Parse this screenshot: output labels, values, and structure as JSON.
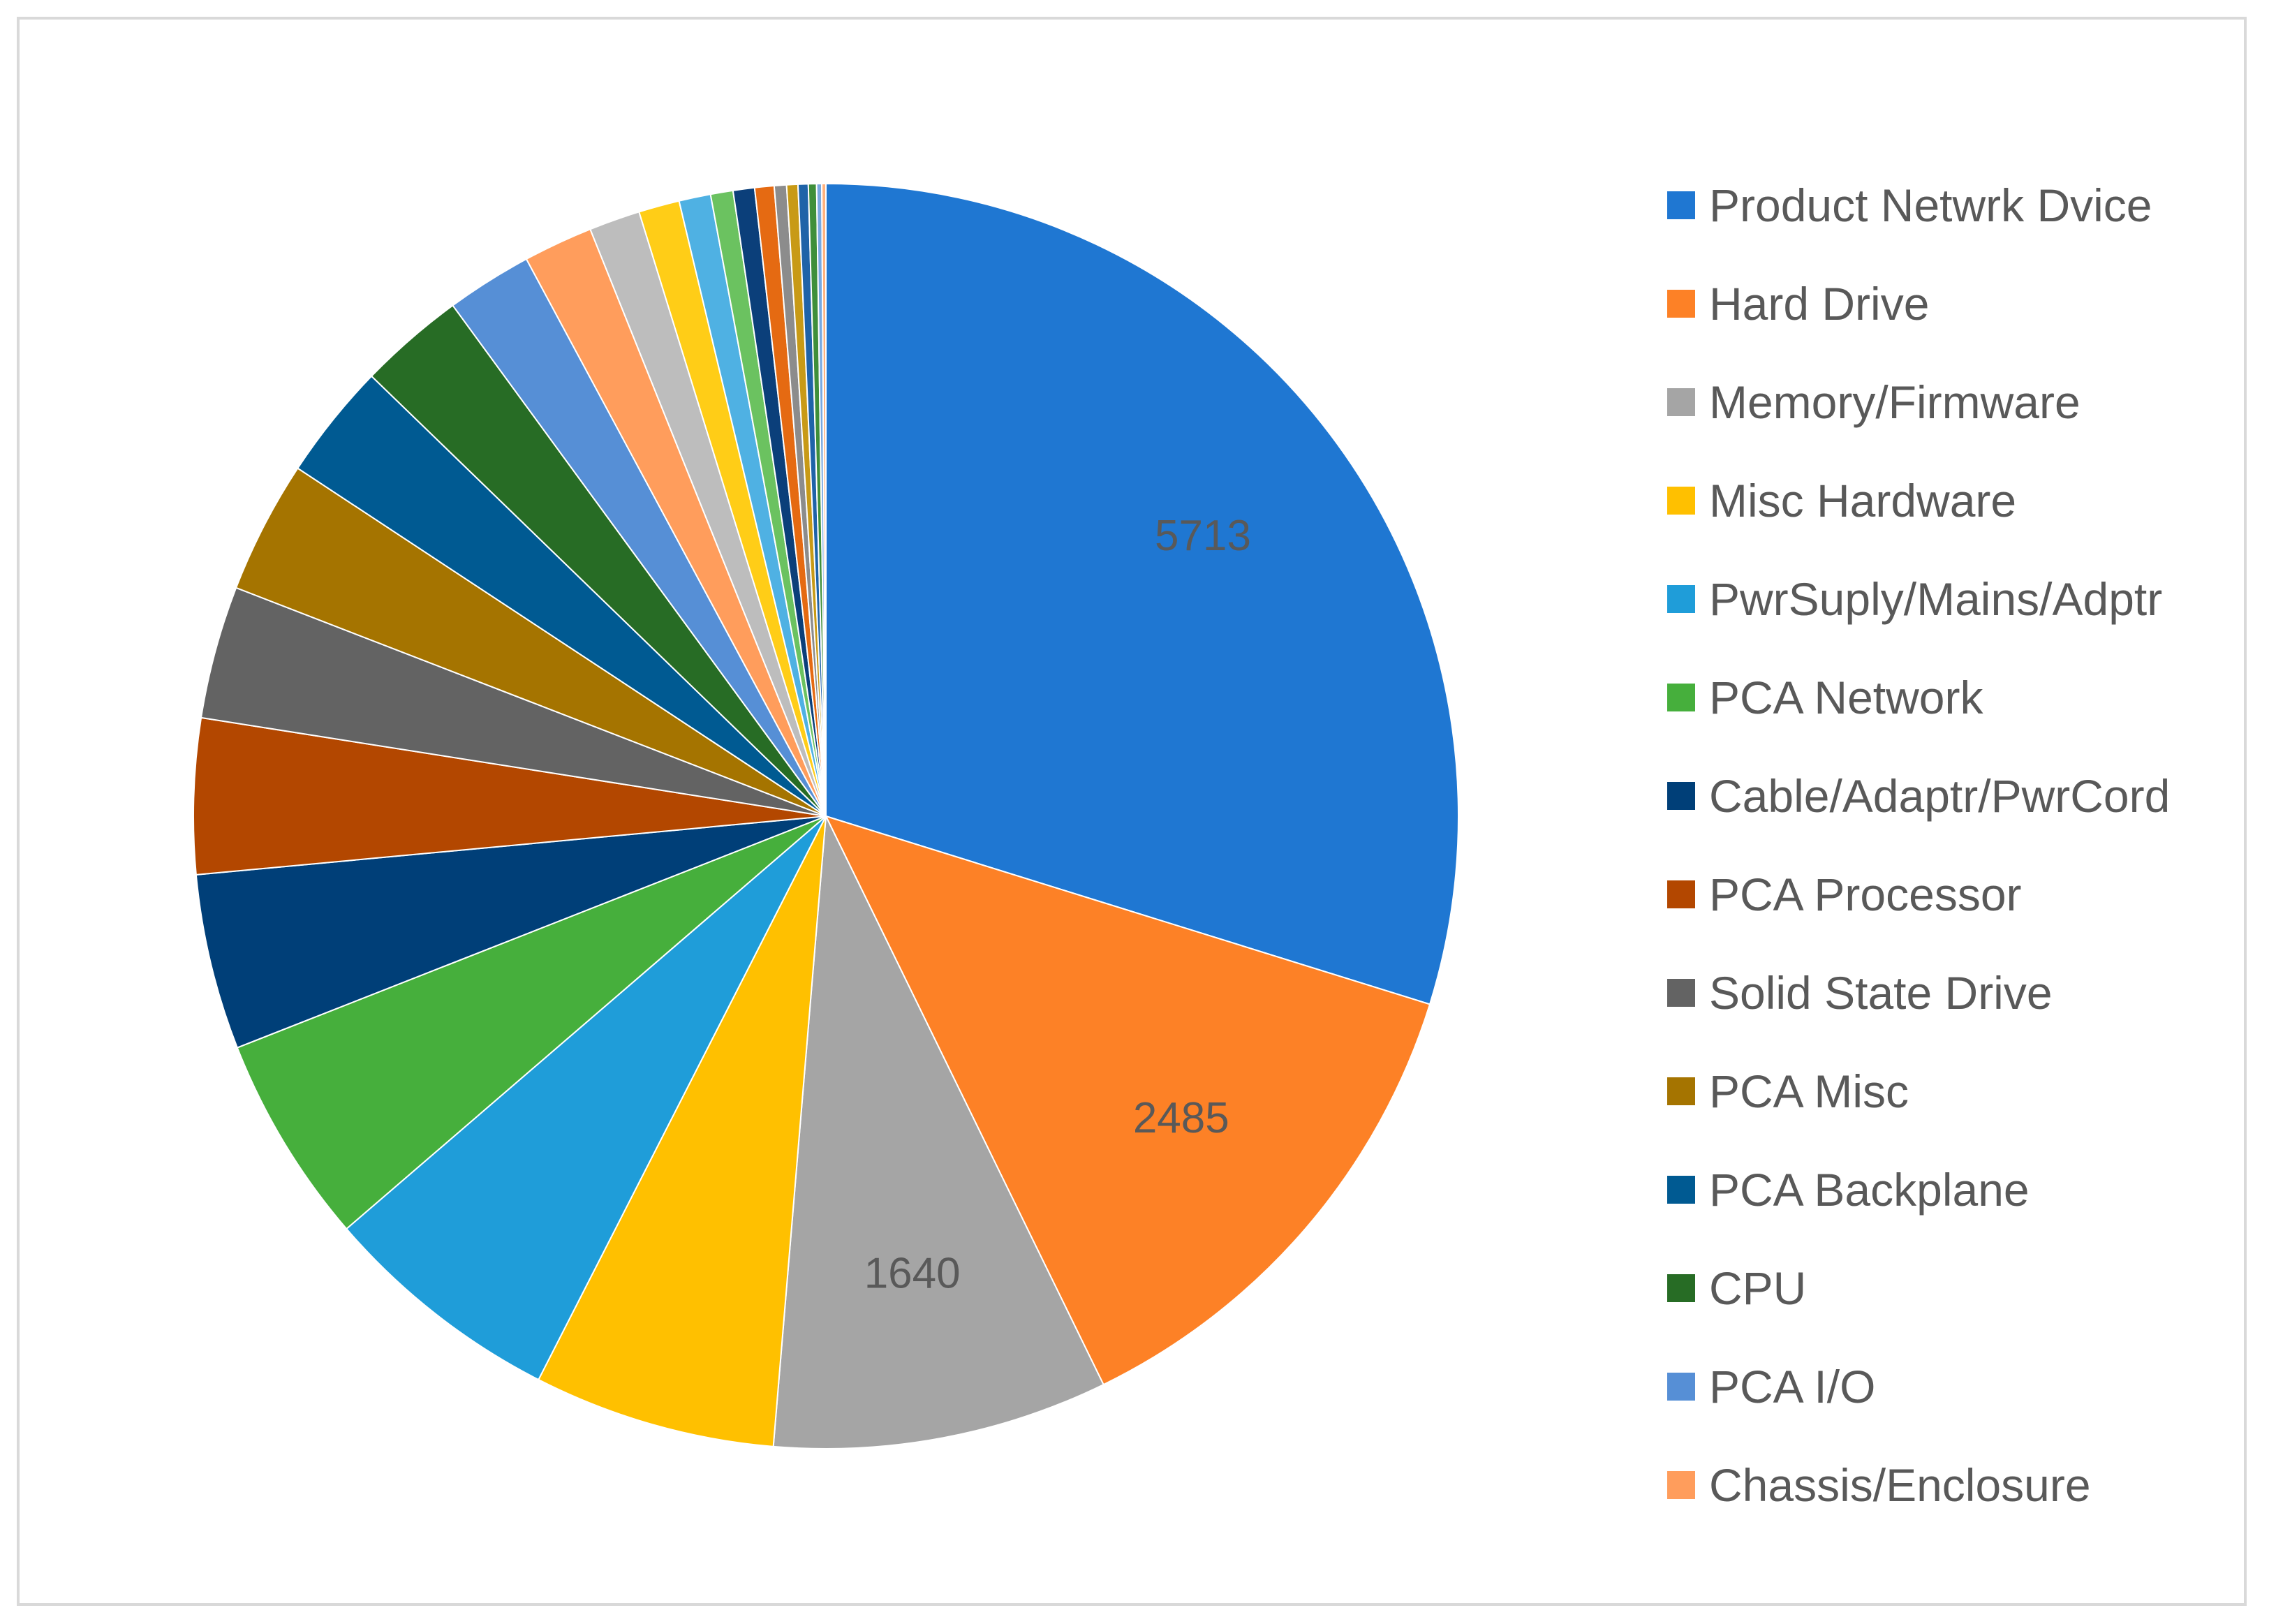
{
  "chart_data": {
    "type": "pie",
    "title": "",
    "legend_position": "right",
    "slices": [
      {
        "label": "Product Netwrk Dvice",
        "value": 5713,
        "color": "#1f77d2",
        "show_label": true
      },
      {
        "label": "Hard Drive",
        "value": 2485,
        "color": "#fd8126",
        "show_label": true
      },
      {
        "label": "Memory/Firmware",
        "value": 1640,
        "color": "#a5a5a5",
        "show_label": true
      },
      {
        "label": "Misc Hardware",
        "value": 1185,
        "color": "#ffc000",
        "show_label": false
      },
      {
        "label": "PwrSuply/Mains/Adptr",
        "value": 1185,
        "color": "#1f9dd9",
        "show_label": false
      },
      {
        "label": "PCA Network",
        "value": 1025,
        "color": "#46af3c",
        "show_label": false
      },
      {
        "label": "Cable/Adaptr/PwrCord",
        "value": 860,
        "color": "#003f78",
        "show_label": false
      },
      {
        "label": "PCA Processor",
        "value": 760,
        "color": "#b34700",
        "show_label": false
      },
      {
        "label": "Solid State Drive",
        "value": 650,
        "color": "#636363",
        "show_label": false
      },
      {
        "label": "PCA Misc",
        "value": 650,
        "color": "#a57400",
        "show_label": false
      },
      {
        "label": "PCA Backplane",
        "value": 570,
        "color": "#005a92",
        "show_label": false
      },
      {
        "label": "CPU",
        "value": 520,
        "color": "#276c25",
        "show_label": false
      },
      {
        "label": "PCA I/O",
        "value": 420,
        "color": "#568fd6",
        "show_label": false
      },
      {
        "label": "Chassis/Enclosure",
        "value": 340,
        "color": "#ff9d5c",
        "show_label": false
      },
      {
        "label": "",
        "value": 250,
        "color": "#bdbdbd",
        "show_label": false
      },
      {
        "label": "",
        "value": 200,
        "color": "#ffcd17",
        "show_label": false
      },
      {
        "label": "",
        "value": 155,
        "color": "#4fb1e3",
        "show_label": false
      },
      {
        "label": "",
        "value": 110,
        "color": "#6bc260",
        "show_label": false
      },
      {
        "label": "",
        "value": 105,
        "color": "#0b3f7a",
        "show_label": false
      },
      {
        "label": "",
        "value": 95,
        "color": "#e56a12",
        "show_label": false
      },
      {
        "label": "",
        "value": 60,
        "color": "#8c8c8c",
        "show_label": false
      },
      {
        "label": "",
        "value": 55,
        "color": "#c89a16",
        "show_label": false
      },
      {
        "label": "",
        "value": 50,
        "color": "#1f63a8",
        "show_label": false
      },
      {
        "label": "",
        "value": 40,
        "color": "#3f8f3a",
        "show_label": false
      },
      {
        "label": "",
        "value": 25,
        "color": "#7aa9e0",
        "show_label": false
      },
      {
        "label": "",
        "value": 20,
        "color": "#ffb27f",
        "show_label": false
      }
    ]
  },
  "legend": {
    "items": [
      {
        "label": "Product Netwrk Dvice",
        "color": "#1f77d2"
      },
      {
        "label": "Hard Drive",
        "color": "#fd8126"
      },
      {
        "label": "Memory/Firmware",
        "color": "#a5a5a5"
      },
      {
        "label": "Misc Hardware",
        "color": "#ffc000"
      },
      {
        "label": "PwrSuply/Mains/Adptr",
        "color": "#1f9dd9"
      },
      {
        "label": "PCA Network",
        "color": "#46af3c"
      },
      {
        "label": "Cable/Adaptr/PwrCord",
        "color": "#003f78"
      },
      {
        "label": "PCA Processor",
        "color": "#b34700"
      },
      {
        "label": "Solid State Drive",
        "color": "#636363"
      },
      {
        "label": "PCA Misc",
        "color": "#a57400"
      },
      {
        "label": "PCA Backplane",
        "color": "#005a92"
      },
      {
        "label": "CPU",
        "color": "#276c25"
      },
      {
        "label": "PCA I/O",
        "color": "#568fd6"
      },
      {
        "label": "Chassis/Enclosure",
        "color": "#ff9d5c"
      }
    ]
  }
}
